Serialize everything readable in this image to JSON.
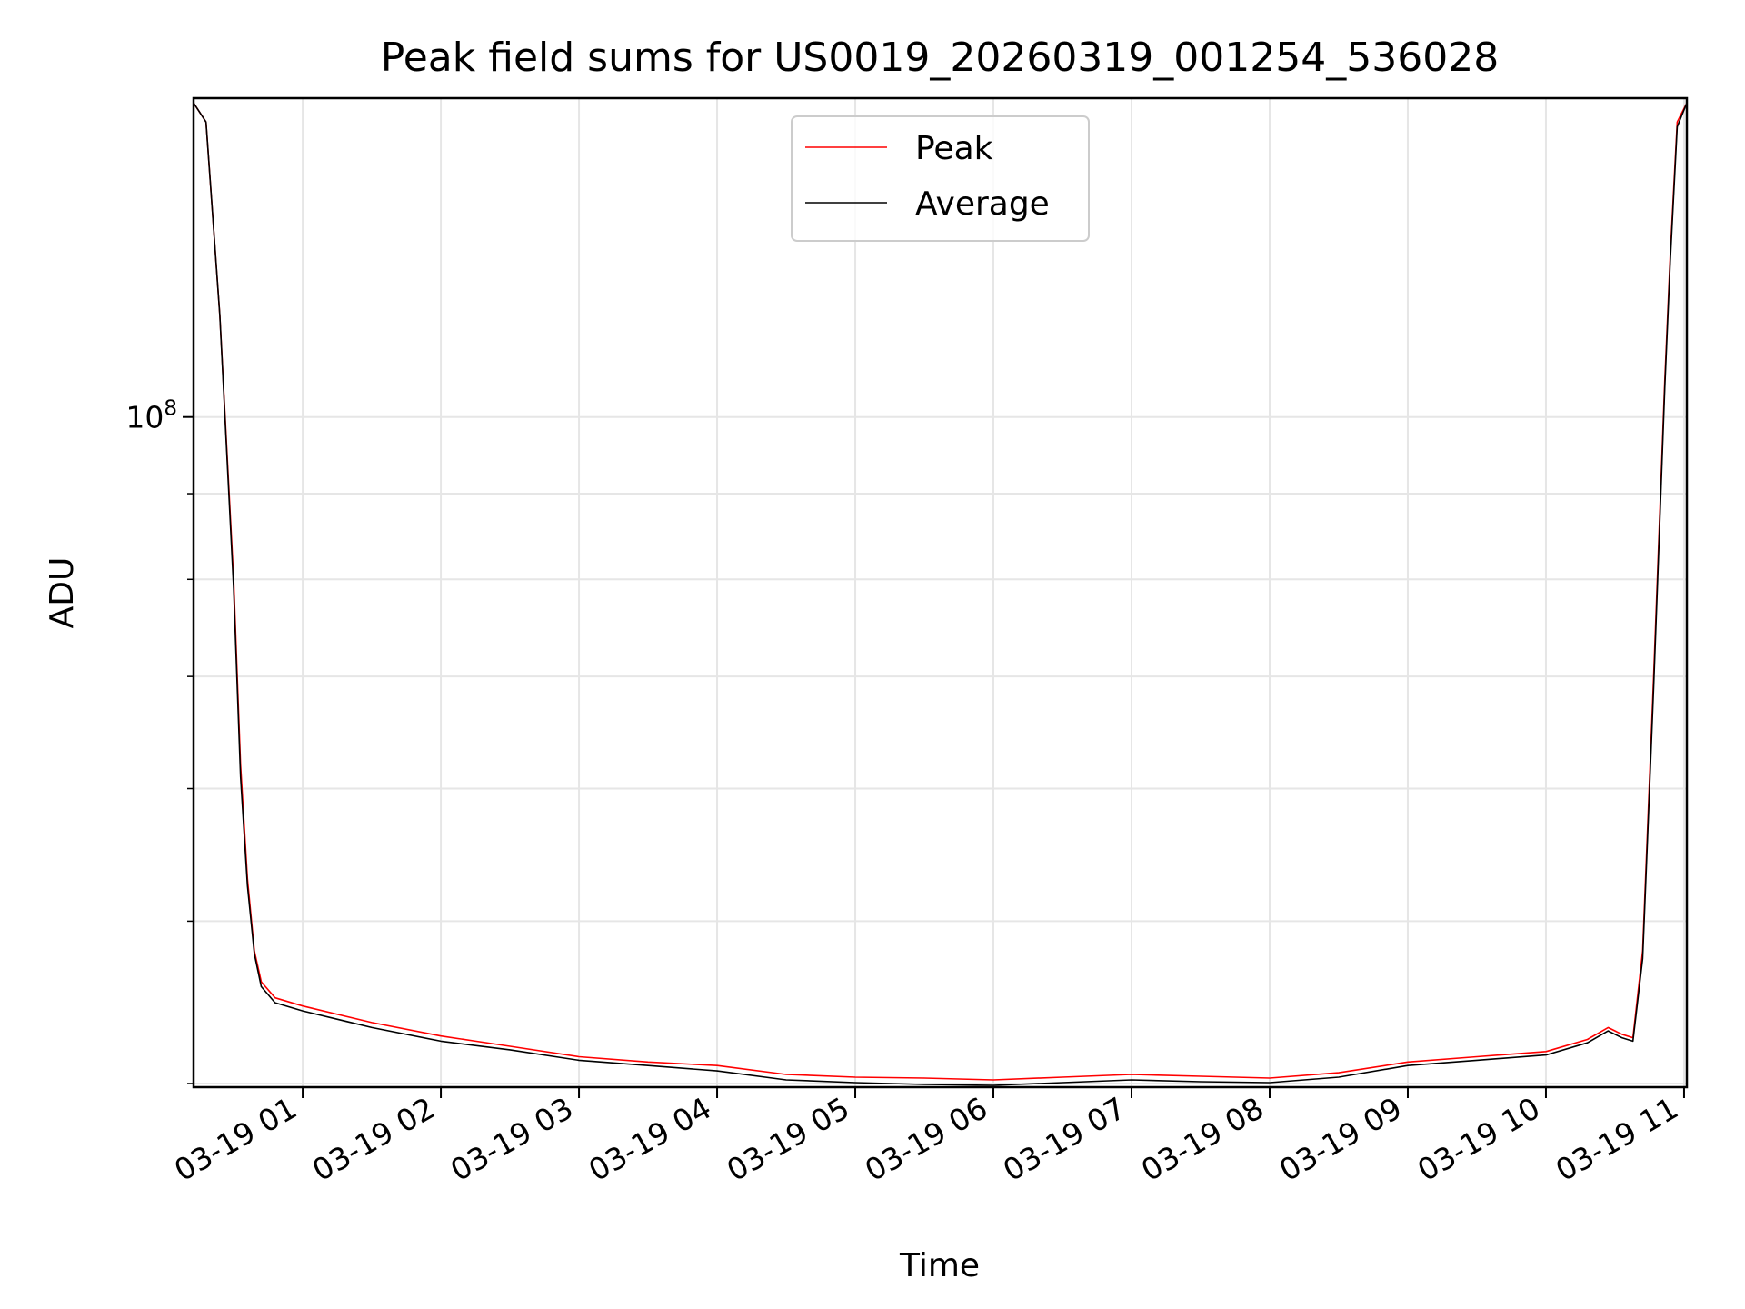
{
  "chart_data": {
    "type": "line",
    "title": "Peak field sums for US0019_20260319_001254_536028",
    "xlabel": "Time",
    "ylabel": "ADU",
    "x_unit": "hours since 03-19 00:00",
    "xlim": [
      0.21,
      11.02
    ],
    "ylim": [
      39800000,
      155000000
    ],
    "yscale": "log",
    "grid": true,
    "legend_position": "top-center",
    "x_ticks": [
      {
        "value": 1,
        "label": "03-19 01"
      },
      {
        "value": 2,
        "label": "03-19 02"
      },
      {
        "value": 3,
        "label": "03-19 03"
      },
      {
        "value": 4,
        "label": "03-19 04"
      },
      {
        "value": 5,
        "label": "03-19 05"
      },
      {
        "value": 6,
        "label": "03-19 06"
      },
      {
        "value": 7,
        "label": "03-19 07"
      },
      {
        "value": 8,
        "label": "03-19 08"
      },
      {
        "value": 9,
        "label": "03-19 09"
      },
      {
        "value": 10,
        "label": "03-19 10"
      },
      {
        "value": 11,
        "label": "03-19 11"
      }
    ],
    "y_major_tick": {
      "value": 100000000,
      "label_base": "10",
      "label_exp": "8"
    },
    "y_minor_ticks": [
      40000000,
      50000000,
      60000000,
      70000000,
      80000000,
      90000000,
      200000000
    ],
    "series": [
      {
        "name": "Peak",
        "color": "#ff0000",
        "x": [
          0.21,
          0.3,
          0.4,
          0.5,
          0.55,
          0.6,
          0.65,
          0.7,
          0.8,
          1.0,
          1.5,
          2.0,
          2.5,
          3.0,
          3.5,
          4.0,
          4.5,
          5.0,
          5.5,
          6.0,
          6.5,
          7.0,
          7.5,
          8.0,
          8.5,
          9.0,
          9.5,
          10.0,
          10.3,
          10.45,
          10.55,
          10.63,
          10.7,
          10.78,
          10.86,
          10.9,
          10.95,
          11.02
        ],
        "y": [
          154000000,
          150000000,
          115000000,
          80000000,
          62000000,
          53000000,
          48000000,
          46000000,
          45000000,
          44500000,
          43500000,
          42700000,
          42100000,
          41500000,
          41200000,
          41000000,
          40500000,
          40350000,
          40300000,
          40200000,
          40350000,
          40500000,
          40400000,
          40300000,
          40600000,
          41200000,
          41500000,
          41800000,
          42500000,
          43200000,
          42800000,
          42600000,
          48000000,
          70000000,
          105000000,
          125000000,
          150000000,
          154000000
        ]
      },
      {
        "name": "Average",
        "color": "#000000",
        "x": [
          0.21,
          0.3,
          0.4,
          0.5,
          0.55,
          0.6,
          0.65,
          0.7,
          0.8,
          1.0,
          1.5,
          2.0,
          2.5,
          3.0,
          3.5,
          4.0,
          4.5,
          5.0,
          5.5,
          6.0,
          6.5,
          7.0,
          7.5,
          8.0,
          8.5,
          9.0,
          9.5,
          10.0,
          10.3,
          10.45,
          10.55,
          10.63,
          10.7,
          10.78,
          10.86,
          10.9,
          10.95,
          11.02
        ],
        "y": [
          154000000,
          150000000,
          115000000,
          79000000,
          61000000,
          52500000,
          47800000,
          45700000,
          44700000,
          44200000,
          43200000,
          42400000,
          41900000,
          41300000,
          41000000,
          40700000,
          40200000,
          40050000,
          39950000,
          39900000,
          40050000,
          40200000,
          40100000,
          40050000,
          40350000,
          41000000,
          41300000,
          41600000,
          42300000,
          43000000,
          42600000,
          42400000,
          47500000,
          69000000,
          104000000,
          124000000,
          149000000,
          154000000
        ]
      }
    ]
  }
}
